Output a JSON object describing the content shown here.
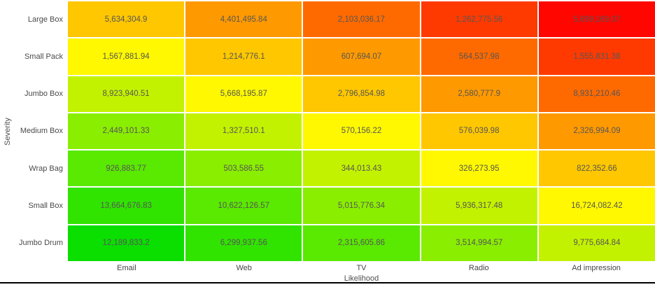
{
  "chart_data": {
    "type": "heatmap",
    "xlabel": "Likelihood",
    "ylabel": "Severity",
    "columns": [
      "Email",
      "Web",
      "TV",
      "Radio",
      "Ad impression"
    ],
    "row_labels": [
      "Large Box",
      "Small Pack",
      "Jumbo Box",
      "Medium Box",
      "Wrap Bag",
      "Small Box",
      "Jumbo Drum"
    ],
    "color_ramp_green_to_red": [
      "#0ADF00",
      "#30E400",
      "#5AE900",
      "#8AEE00",
      "#C3F200",
      "#FFF800",
      "#FFC700",
      "#FF9900",
      "#FF6A00",
      "#FF3A00",
      "#FF0600"
    ],
    "grid_line_color": "#ffffff",
    "bottom_line_color": "#000000",
    "rows": [
      {
        "label": "Large Box",
        "cells": [
          {
            "text": "5,634,304.9",
            "color": "#FFC700"
          },
          {
            "text": "4,401,495.84",
            "color": "#FF9900"
          },
          {
            "text": "2,103,036.17",
            "color": "#FF6A00"
          },
          {
            "text": "1,262,775.56",
            "color": "#FF3A00"
          },
          {
            "text": "5,699,169.07",
            "color": "#FF0600"
          }
        ]
      },
      {
        "label": "Small Pack",
        "cells": [
          {
            "text": "1,567,881.94",
            "color": "#FFF800"
          },
          {
            "text": "1,214,776.1",
            "color": "#FFC700"
          },
          {
            "text": "607,694.07",
            "color": "#FF9900"
          },
          {
            "text": "564,537.98",
            "color": "#FF6A00"
          },
          {
            "text": "1,555,831.38",
            "color": "#FF3A00"
          }
        ]
      },
      {
        "label": "Jumbo Box",
        "cells": [
          {
            "text": "8,923,940.51",
            "color": "#C3F200"
          },
          {
            "text": "5,668,195.87",
            "color": "#FFF800"
          },
          {
            "text": "2,796,854.98",
            "color": "#FFC700"
          },
          {
            "text": "2,580,777.9",
            "color": "#FF9900"
          },
          {
            "text": "8,931,210.46",
            "color": "#FF6A00"
          }
        ]
      },
      {
        "label": "Medium Box",
        "cells": [
          {
            "text": "2,449,101.33",
            "color": "#8AEE00"
          },
          {
            "text": "1,327,510.1",
            "color": "#C3F200"
          },
          {
            "text": "570,156.22",
            "color": "#FFF800"
          },
          {
            "text": "576,039.98",
            "color": "#FFC700"
          },
          {
            "text": "2,326,994.09",
            "color": "#FF9900"
          }
        ]
      },
      {
        "label": "Wrap Bag",
        "cells": [
          {
            "text": "926,883.77",
            "color": "#5AE900"
          },
          {
            "text": "503,586.55",
            "color": "#8AEE00"
          },
          {
            "text": "344,013.43",
            "color": "#C3F200"
          },
          {
            "text": "326,273.95",
            "color": "#FFF800"
          },
          {
            "text": "822,352.66",
            "color": "#FFC700"
          }
        ]
      },
      {
        "label": "Small Box",
        "cells": [
          {
            "text": "13,664,676.83",
            "color": "#30E400"
          },
          {
            "text": "10,622,126.57",
            "color": "#5AE900"
          },
          {
            "text": "5,015,776.34",
            "color": "#8AEE00"
          },
          {
            "text": "5,936,317.48",
            "color": "#C3F200"
          },
          {
            "text": "16,724,082.42",
            "color": "#FFF800"
          }
        ]
      },
      {
        "label": "Jumbo Drum",
        "cells": [
          {
            "text": "12,189,833.2",
            "color": "#0ADF00"
          },
          {
            "text": "6,299,937.56",
            "color": "#30E400"
          },
          {
            "text": "2,315,605.86",
            "color": "#5AE900"
          },
          {
            "text": "3,514,994.57",
            "color": "#8AEE00"
          },
          {
            "text": "9,775,684.84",
            "color": "#C3F200"
          }
        ]
      }
    ]
  }
}
